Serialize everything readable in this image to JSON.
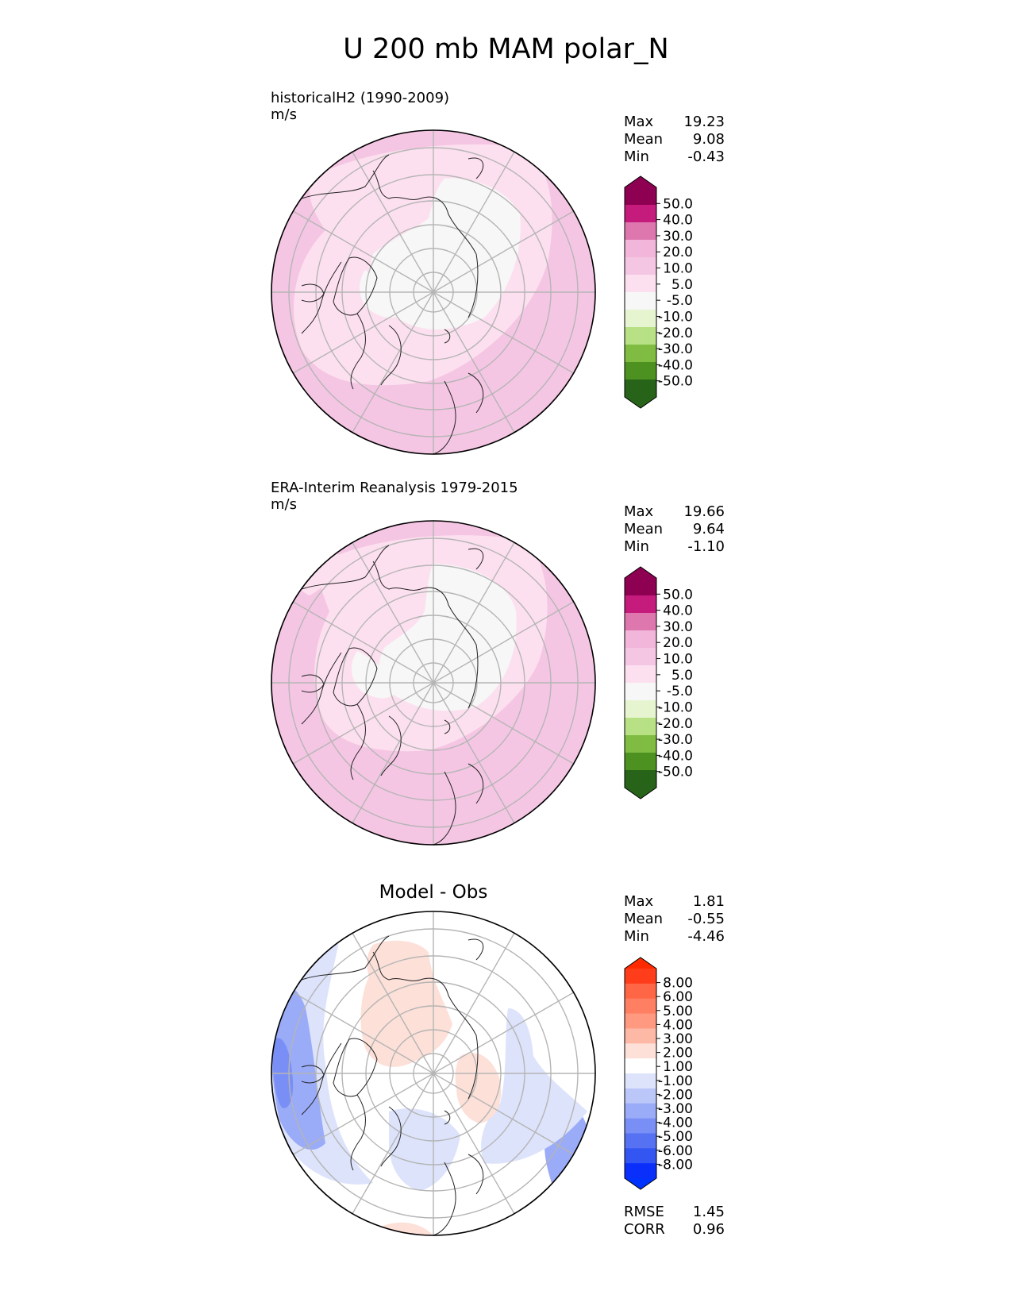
{
  "title": "U 200 mb MAM polar_N",
  "panels": [
    {
      "title_line1": "historicalH2 (1990-2009)",
      "title_line2": "m/s",
      "stats": [
        {
          "label": "Max",
          "value": "19.23"
        },
        {
          "label": "Mean",
          "value": "9.08"
        },
        {
          "label": "Min",
          "value": "-0.43"
        }
      ]
    },
    {
      "title_line1": "ERA-Interim Reanalysis 1979-2015",
      "title_line2": "m/s",
      "stats": [
        {
          "label": "Max",
          "value": "19.66"
        },
        {
          "label": "Mean",
          "value": "9.64"
        },
        {
          "label": "Min",
          "value": "-1.10"
        }
      ]
    },
    {
      "center_title": "Model - Obs",
      "stats": [
        {
          "label": "Max",
          "value": "1.81"
        },
        {
          "label": "Mean",
          "value": "-0.55"
        },
        {
          "label": "Min",
          "value": "-4.46"
        }
      ],
      "extra_stats": [
        {
          "label": "RMSE",
          "value": "1.45"
        },
        {
          "label": "CORR",
          "value": "0.96"
        }
      ]
    }
  ],
  "chart_data": [
    {
      "type": "heatmap",
      "projection": "north-polar-stereographic",
      "variable": "U 200 mb",
      "units": "m/s",
      "colorbar": {
        "extend": "both",
        "ticks": [
          "50.0",
          "40.0",
          "30.0",
          "20.0",
          "10.0",
          "5.0",
          "-5.0",
          "-10.0",
          "-20.0",
          "-30.0",
          "-40.0",
          "-50.0"
        ],
        "colors_top_to_bottom": [
          "#8e0152",
          "#c51b7d",
          "#de77ae",
          "#f1b6da",
          "#f5c6e3",
          "#fde0ef",
          "#f7f7f7",
          "#e6f5d0",
          "#b8e186",
          "#7fbc41",
          "#4d9221",
          "#276419"
        ],
        "overflow_top": "#8e0152",
        "overflow_bottom": "#276419"
      }
    },
    {
      "type": "heatmap",
      "projection": "north-polar-stereographic",
      "variable": "U 200 mb",
      "units": "m/s",
      "colorbar": {
        "extend": "both",
        "ticks": [
          "50.0",
          "40.0",
          "30.0",
          "20.0",
          "10.0",
          "5.0",
          "-5.0",
          "-10.0",
          "-20.0",
          "-30.0",
          "-40.0",
          "-50.0"
        ],
        "colors_top_to_bottom": [
          "#8e0152",
          "#c51b7d",
          "#de77ae",
          "#f1b6da",
          "#f5c6e3",
          "#fde0ef",
          "#f7f7f7",
          "#e6f5d0",
          "#b8e186",
          "#7fbc41",
          "#4d9221",
          "#276419"
        ],
        "overflow_top": "#8e0152",
        "overflow_bottom": "#276419"
      }
    },
    {
      "type": "heatmap",
      "projection": "north-polar-stereographic",
      "variable": "U 200 mb difference",
      "colorbar": {
        "extend": "both",
        "ticks": [
          "8.00",
          "6.00",
          "5.00",
          "4.00",
          "3.00",
          "2.00",
          "1.00",
          "-1.00",
          "-2.00",
          "-3.00",
          "-4.00",
          "-5.00",
          "-6.00",
          "-8.00"
        ],
        "colors_top_to_bottom": [
          "#ff3d1a",
          "#ff6645",
          "#ff7f63",
          "#ff9980",
          "#fdb8a6",
          "#fde0d8",
          "#ffffff",
          "#dde3fb",
          "#bcc7f9",
          "#9aabf7",
          "#7a8ff5",
          "#5672f3",
          "#3355f2",
          "#0a2ffb"
        ],
        "overflow_top": "#ff2a00",
        "overflow_bottom": "#0033ff"
      }
    }
  ]
}
